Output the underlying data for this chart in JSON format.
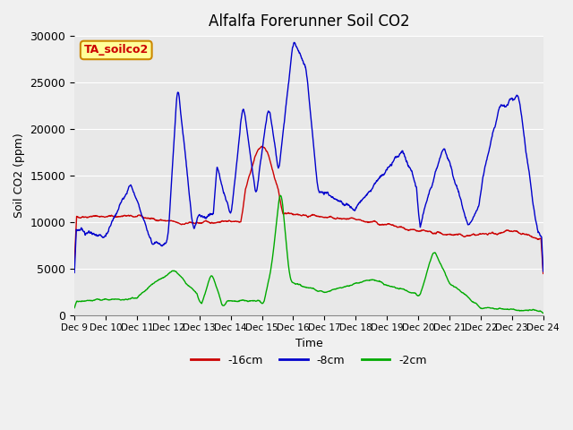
{
  "title": "Alfalfa Forerunner Soil CO2",
  "ylabel": "Soil CO2 (ppm)",
  "xlabel": "Time",
  "annotation": "TA_soilco2",
  "xlim": [
    0,
    15
  ],
  "ylim": [
    0,
    30000
  ],
  "yticks": [
    0,
    5000,
    10000,
    15000,
    20000,
    25000,
    30000
  ],
  "xtick_labels": [
    "Dec 9",
    "Dec 10",
    "Dec 11",
    "Dec 12",
    "Dec 13",
    "Dec 14",
    "Dec 15",
    "Dec 16",
    "Dec 17",
    "Dec 18",
    "Dec 19",
    "Dec 20",
    "Dec 21",
    "Dec 22",
    "Dec 23",
    "Dec 24"
  ],
  "line_colors": {
    "d16cm": "#cc0000",
    "d8cm": "#0000cc",
    "d2cm": "#00aa00"
  },
  "legend_labels": [
    "-16cm",
    "-8cm",
    "-2cm"
  ],
  "bg_color": "#e8e8e8",
  "plot_bg": "#e8e8e8",
  "annotation_bg": "#ffff99",
  "annotation_border": "#cc8800",
  "annotation_text_color": "#cc0000"
}
